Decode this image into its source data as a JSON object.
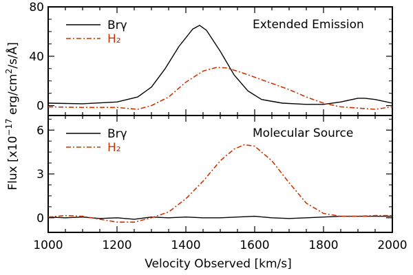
{
  "colors": {
    "brgamma": "#000000",
    "h2": "#cc3300",
    "axes": "#000000",
    "background": "#ffffff"
  },
  "ylabel": {
    "main": "Flux [x10",
    "exp": "−17",
    "unit": " erg/cm",
    "unit_exp": "2",
    "unit_tail": "/s/Å]"
  },
  "chart_data": [
    {
      "type": "line",
      "panel": "top",
      "title": "",
      "annotation": "Extended Emission",
      "xlim": [
        1000,
        2000
      ],
      "ylim": [
        -8,
        80
      ],
      "yticks": [
        0,
        40,
        80
      ],
      "ytick_labels": [
        "0",
        "40",
        "80"
      ],
      "legend": {
        "placement": "top-left",
        "entries": [
          {
            "name": "Brγ",
            "style": "solid"
          },
          {
            "name": "H₂",
            "style": "dash-dot"
          }
        ]
      },
      "series": [
        {
          "name": "Brγ",
          "style": "solid",
          "x": [
            1000,
            1100,
            1200,
            1260,
            1300,
            1340,
            1380,
            1420,
            1440,
            1460,
            1500,
            1540,
            1580,
            1620,
            1680,
            1750,
            1800,
            1850,
            1900,
            1920,
            1950,
            2000
          ],
          "y": [
            2,
            1.5,
            3,
            7,
            15,
            30,
            48,
            62,
            65,
            61,
            44,
            25,
            12,
            5,
            2,
            1,
            1,
            3,
            6,
            6,
            5,
            2
          ]
        },
        {
          "name": "H₂",
          "style": "dash-dot",
          "x": [
            1000,
            1100,
            1200,
            1260,
            1300,
            1350,
            1400,
            1450,
            1490,
            1520,
            1560,
            1600,
            1650,
            1700,
            1750,
            1800,
            1850,
            1900,
            1950,
            2000
          ],
          "y": [
            -1,
            -1.5,
            -1.5,
            -3,
            0,
            7,
            19,
            28,
            31,
            30.5,
            27,
            23,
            18,
            13,
            7,
            2,
            -1,
            -2,
            -3,
            -1
          ]
        }
      ]
    },
    {
      "type": "line",
      "panel": "bottom",
      "title": "",
      "annotation": "Molecular Source",
      "xlim": [
        1000,
        2000
      ],
      "ylim": [
        -1,
        7
      ],
      "yticks": [
        0,
        3,
        6
      ],
      "ytick_labels": [
        "0",
        "3",
        "6"
      ],
      "xticks": [
        1000,
        1200,
        1400,
        1600,
        1800,
        2000
      ],
      "xtick_labels": [
        "1000",
        "1200",
        "1400",
        "1600",
        "1800",
        "2000"
      ],
      "xlabel": "Velocity Observed [km/s]",
      "legend": {
        "placement": "top-left",
        "entries": [
          {
            "name": "Brγ",
            "style": "solid"
          },
          {
            "name": "H₂",
            "style": "dash-dot"
          }
        ]
      },
      "series": [
        {
          "name": "Brγ",
          "style": "solid",
          "x": [
            1000,
            1050,
            1100,
            1150,
            1200,
            1250,
            1300,
            1350,
            1400,
            1450,
            1500,
            1550,
            1600,
            1650,
            1700,
            1750,
            1800,
            1850,
            1900,
            1950,
            2000
          ],
          "y": [
            0.05,
            0.0,
            0.05,
            -0.05,
            0.0,
            -0.1,
            0.05,
            0.0,
            0.05,
            0.0,
            0.0,
            0.05,
            0.1,
            0.0,
            -0.05,
            0.0,
            0.05,
            0.1,
            0.1,
            0.1,
            0.1
          ]
        },
        {
          "name": "H₂",
          "style": "dash-dot",
          "x": [
            1000,
            1050,
            1100,
            1150,
            1200,
            1250,
            1300,
            1350,
            1400,
            1450,
            1500,
            1540,
            1570,
            1600,
            1650,
            1700,
            1750,
            1800,
            1850,
            1900,
            1950,
            2000
          ],
          "y": [
            0.05,
            0.15,
            0.1,
            -0.1,
            -0.3,
            -0.3,
            0.0,
            0.4,
            1.3,
            2.5,
            3.9,
            4.7,
            5.0,
            4.9,
            3.9,
            2.4,
            1.0,
            0.3,
            0.1,
            0.1,
            0.15,
            0.15
          ]
        }
      ]
    }
  ]
}
